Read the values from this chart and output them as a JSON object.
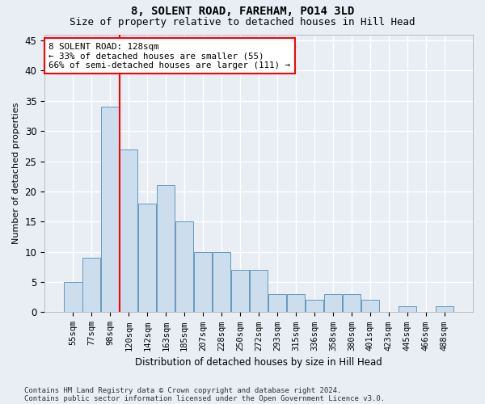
{
  "title1": "8, SOLENT ROAD, FAREHAM, PO14 3LD",
  "title2": "Size of property relative to detached houses in Hill Head",
  "xlabel": "Distribution of detached houses by size in Hill Head",
  "ylabel": "Number of detached properties",
  "footnote1": "Contains HM Land Registry data © Crown copyright and database right 2024.",
  "footnote2": "Contains public sector information licensed under the Open Government Licence v3.0.",
  "categories": [
    "55sqm",
    "77sqm",
    "98sqm",
    "120sqm",
    "142sqm",
    "163sqm",
    "185sqm",
    "207sqm",
    "228sqm",
    "250sqm",
    "272sqm",
    "293sqm",
    "315sqm",
    "336sqm",
    "358sqm",
    "380sqm",
    "401sqm",
    "423sqm",
    "445sqm",
    "466sqm",
    "488sqm"
  ],
  "values": [
    5,
    9,
    34,
    27,
    18,
    21,
    15,
    10,
    10,
    7,
    7,
    3,
    3,
    2,
    3,
    3,
    2,
    0,
    1,
    0,
    1
  ],
  "bar_color": "#ccdded",
  "bar_edge_color": "#6699bb",
  "vline_color": "red",
  "annotation_text": "8 SOLENT ROAD: 128sqm\n← 33% of detached houses are smaller (55)\n66% of semi-detached houses are larger (111) →",
  "annotation_box_color": "white",
  "annotation_box_edge": "red",
  "ylim": [
    0,
    46
  ],
  "yticks": [
    0,
    5,
    10,
    15,
    20,
    25,
    30,
    35,
    40,
    45
  ],
  "background_color": "#e8eef4",
  "plot_bg_color": "#e8eef4",
  "grid_color": "white",
  "title1_fontsize": 10,
  "title2_fontsize": 9
}
